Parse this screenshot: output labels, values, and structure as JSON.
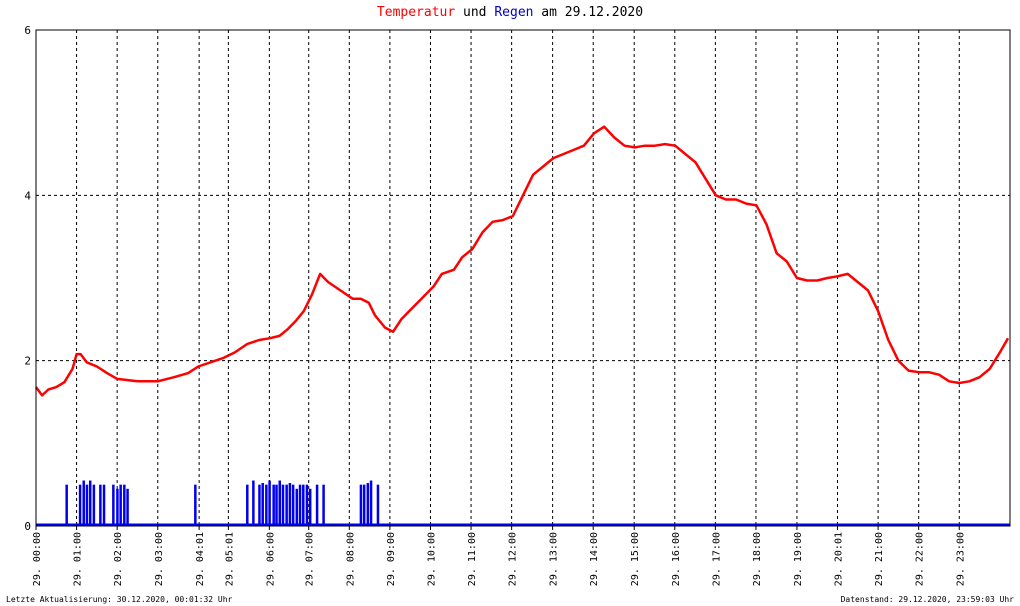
{
  "title": {
    "temp_word": "Temperatur",
    "und": " und ",
    "rain_word": "Regen",
    "rest": " am 29.12.2020"
  },
  "colors": {
    "temperature": "#ff0000",
    "rain": "#0000ee",
    "grid": "#000000",
    "background": "#ffffff"
  },
  "footer": {
    "left": "Letzte Aktualisierung: 30.12.2020, 00:01:32 Uhr",
    "right": "Datenstand: 29.12.2020, 23:59:03 Uhr"
  },
  "chart_data": {
    "type": "line",
    "ylim": [
      0,
      6
    ],
    "yticks": [
      0,
      2,
      4,
      6
    ],
    "grid": true,
    "x_tick_labels": [
      "29. 00:00",
      "29. 01:00",
      "29. 02:00",
      "29. 03:00",
      "29. 04:01",
      "29. 05:01",
      "29. 06:00",
      "29. 07:00",
      "29. 08:00",
      "29. 09:00",
      "29. 10:00",
      "29. 11:00",
      "29. 12:00",
      "29. 13:00",
      "29. 14:00",
      "29. 15:00",
      "29. 16:00",
      "29. 17:00",
      "29. 18:00",
      "29. 19:00",
      "29. 20:01",
      "29. 21:00",
      "29. 22:00",
      "29. 23:00"
    ],
    "x_ticks_hours": [
      0,
      1,
      2,
      3,
      4.02,
      4.74,
      5.75,
      6.72,
      7.72,
      8.72,
      9.72,
      10.72,
      11.72,
      12.73,
      13.73,
      14.74,
      15.74,
      16.74,
      17.74,
      18.75,
      19.75,
      20.75,
      21.75,
      22.75
    ],
    "series": [
      {
        "name": "Temperatur",
        "color": "#ff0000",
        "x_hours": [
          0,
          0.15,
          0.3,
          0.5,
          0.7,
          0.9,
          1.0,
          1.1,
          1.25,
          1.5,
          1.75,
          2.0,
          2.5,
          3.0,
          3.4,
          3.75,
          4.0,
          4.3,
          4.6,
          4.9,
          5.2,
          5.5,
          5.75,
          6.0,
          6.2,
          6.4,
          6.6,
          6.8,
          7.0,
          7.2,
          7.5,
          7.8,
          8.0,
          8.2,
          8.35,
          8.6,
          8.8,
          9.0,
          9.3,
          9.5,
          9.8,
          10.0,
          10.3,
          10.5,
          10.75,
          11.0,
          11.25,
          11.5,
          11.75,
          12.0,
          12.25,
          12.5,
          12.75,
          13.0,
          13.25,
          13.5,
          13.75,
          14.0,
          14.25,
          14.5,
          14.75,
          15.0,
          15.25,
          15.5,
          15.75,
          16.0,
          16.25,
          16.5,
          16.75,
          17.0,
          17.25,
          17.5,
          17.75,
          18.0,
          18.25,
          18.5,
          18.75,
          19.0,
          19.25,
          19.5,
          19.75,
          20.0,
          20.25,
          20.5,
          20.75,
          21.0,
          21.25,
          21.5,
          21.75,
          22.0,
          22.25,
          22.5,
          22.75,
          23.0,
          23.25,
          23.5,
          23.75,
          23.95
        ],
        "values": [
          1.68,
          1.58,
          1.65,
          1.68,
          1.74,
          1.9,
          2.08,
          2.08,
          1.98,
          1.93,
          1.85,
          1.78,
          1.75,
          1.75,
          1.8,
          1.85,
          1.93,
          1.98,
          2.03,
          2.1,
          2.2,
          2.25,
          2.27,
          2.3,
          2.38,
          2.48,
          2.6,
          2.8,
          3.05,
          2.95,
          2.85,
          2.75,
          2.75,
          2.7,
          2.55,
          2.4,
          2.35,
          2.5,
          2.65,
          2.75,
          2.9,
          3.05,
          3.1,
          3.25,
          3.35,
          3.55,
          3.68,
          3.7,
          3.75,
          4.0,
          4.25,
          4.35,
          4.45,
          4.5,
          4.55,
          4.6,
          4.75,
          4.83,
          4.7,
          4.6,
          4.58,
          4.6,
          4.6,
          4.62,
          4.6,
          4.5,
          4.4,
          4.2,
          4.0,
          3.95,
          3.95,
          3.9,
          3.88,
          3.65,
          3.3,
          3.2,
          3.0,
          2.97,
          2.97,
          3.0,
          3.02,
          3.05,
          2.95,
          2.85,
          2.6,
          2.25,
          2.0,
          1.88,
          1.86,
          1.86,
          1.83,
          1.75,
          1.73,
          1.75,
          1.8,
          1.9,
          2.1,
          2.27
        ]
      },
      {
        "name": "Regen",
        "color": "#0000ee",
        "x_hours": [
          0.75,
          1.08,
          1.17,
          1.25,
          1.33,
          1.42,
          1.58,
          1.67,
          1.9,
          2.0,
          2.08,
          2.17,
          2.25,
          3.92,
          5.2,
          5.35,
          5.5,
          5.58,
          5.67,
          5.75,
          5.85,
          5.92,
          6.0,
          6.08,
          6.17,
          6.25,
          6.33,
          6.42,
          6.5,
          6.58,
          6.67,
          6.75,
          6.92,
          7.08,
          8.0,
          8.08,
          8.17,
          8.25,
          8.42
        ],
        "values": [
          0.5,
          0.5,
          0.55,
          0.5,
          0.55,
          0.5,
          0.5,
          0.5,
          0.5,
          0.45,
          0.5,
          0.5,
          0.45,
          0.5,
          0.5,
          0.55,
          0.5,
          0.52,
          0.5,
          0.55,
          0.5,
          0.5,
          0.55,
          0.5,
          0.5,
          0.52,
          0.5,
          0.45,
          0.5,
          0.5,
          0.5,
          0.45,
          0.5,
          0.5,
          0.5,
          0.5,
          0.52,
          0.55,
          0.5
        ]
      }
    ]
  }
}
